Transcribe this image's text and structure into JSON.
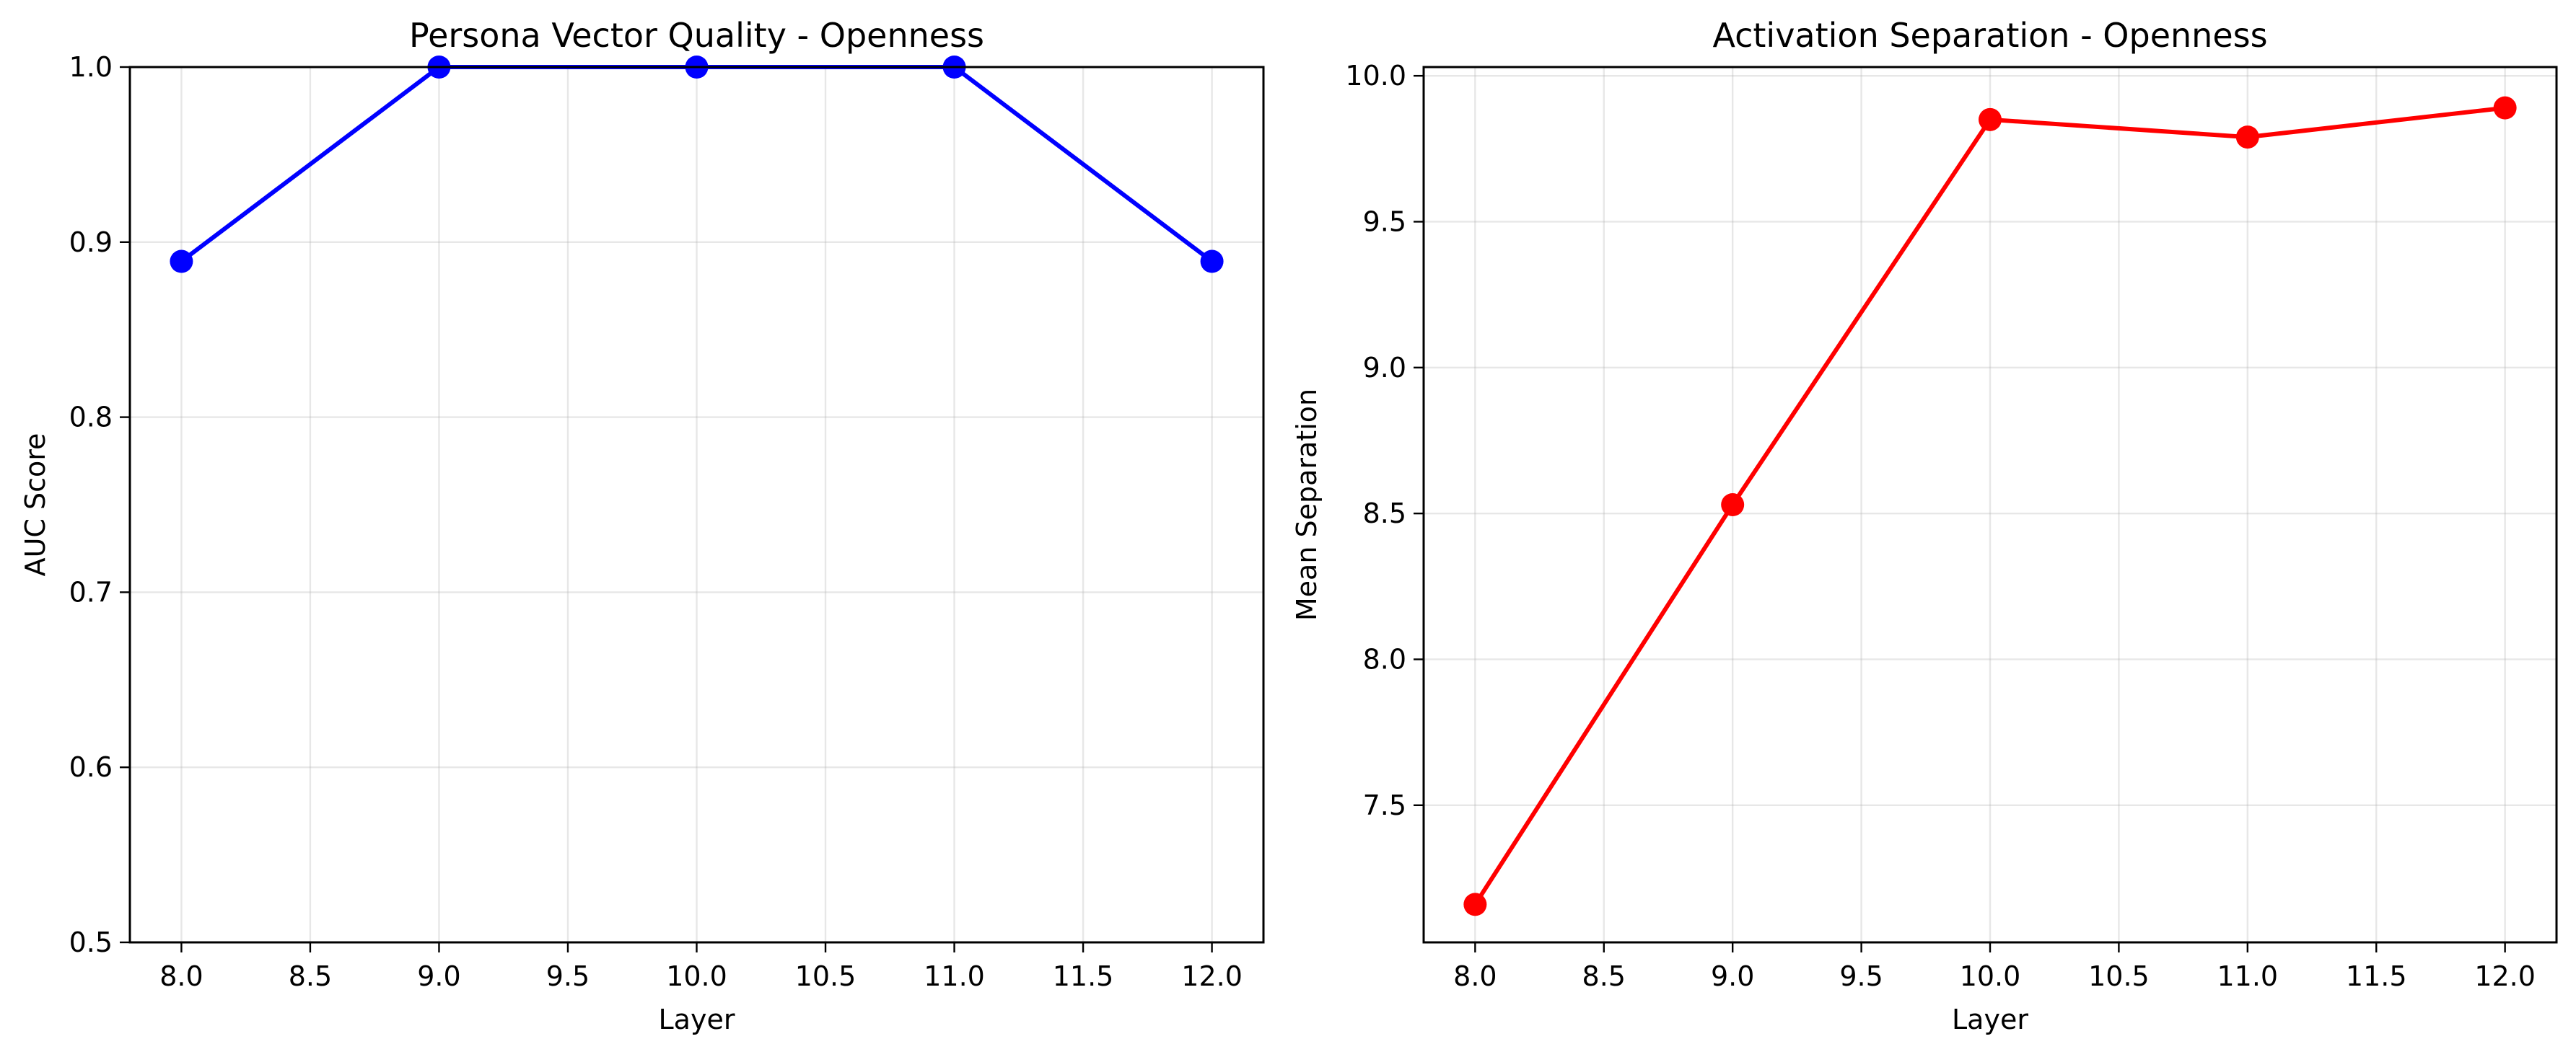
{
  "chart_data": [
    {
      "type": "line",
      "title": "Persona Vector Quality - Openness",
      "xlabel": "Layer",
      "ylabel": "AUC Score",
      "xlim": [
        7.8,
        12.2
      ],
      "ylim": [
        0.5,
        1.0
      ],
      "xticks": [
        8.0,
        8.5,
        9.0,
        9.5,
        10.0,
        10.5,
        11.0,
        11.5,
        12.0
      ],
      "xtick_labels": [
        "8.0",
        "8.5",
        "9.0",
        "9.5",
        "10.0",
        "10.5",
        "11.0",
        "11.5",
        "12.0"
      ],
      "yticks": [
        0.5,
        0.6,
        0.7,
        0.8,
        0.9,
        1.0
      ],
      "ytick_labels": [
        "0.5",
        "0.6",
        "0.7",
        "0.8",
        "0.9",
        "1.0"
      ],
      "grid": true,
      "series": [
        {
          "x": [
            8,
            9,
            10,
            11,
            12
          ],
          "values": [
            0.889,
            1.0,
            1.0,
            1.0,
            0.889
          ],
          "color": "#0000ff",
          "marker": "circle"
        }
      ]
    },
    {
      "type": "line",
      "title": "Activation Separation - Openness",
      "xlabel": "Layer",
      "ylabel": "Mean Separation",
      "xlim": [
        7.8,
        12.2
      ],
      "ylim": [
        7.03,
        10.03
      ],
      "xticks": [
        8.0,
        8.5,
        9.0,
        9.5,
        10.0,
        10.5,
        11.0,
        11.5,
        12.0
      ],
      "xtick_labels": [
        "8.0",
        "8.5",
        "9.0",
        "9.5",
        "10.0",
        "10.5",
        "11.0",
        "11.5",
        "12.0"
      ],
      "yticks": [
        7.5,
        8.0,
        8.5,
        9.0,
        9.5,
        10.0
      ],
      "ytick_labels": [
        "7.5",
        "8.0",
        "8.5",
        "9.0",
        "9.5",
        "10.0"
      ],
      "grid": true,
      "series": [
        {
          "x": [
            8,
            9,
            10,
            11,
            12
          ],
          "values": [
            7.16,
            8.53,
            9.85,
            9.79,
            9.89
          ],
          "color": "#ff0000",
          "marker": "circle"
        }
      ]
    }
  ]
}
